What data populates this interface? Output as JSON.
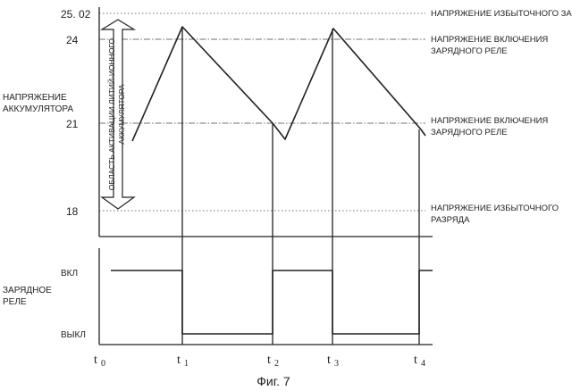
{
  "figure": {
    "caption": "Фиг. 7",
    "voltage_axis_label": [
      "НАПРЯЖЕНИЕ",
      "АККУМУЛЯТОРА"
    ],
    "relay_axis_label": [
      "ЗАРЯДНОЕ",
      "РЕЛЕ"
    ],
    "voltage_ticks": [
      {
        "value": 25.02,
        "label": "25. 02",
        "note": [
          "НАПРЯЖЕНИЕ ИЗБЫТОЧНОГО ЗАРЯДА"
        ],
        "style": "dotted"
      },
      {
        "value": 24,
        "label": "24",
        "note": [
          "НАПРЯЖЕНИЕ ВКЛЮЧЕНИЯ",
          "ЗАРЯДНОГО РЕЛЕ"
        ],
        "style": "dashdot"
      },
      {
        "value": 21,
        "label": "21",
        "note": [
          "НАПРЯЖЕНИЕ ВКЛЮЧЕНИЯ",
          "ЗАРЯДНОГО РЕЛЕ"
        ],
        "style": "dashdot"
      },
      {
        "value": 18,
        "label": "18",
        "note": [
          "НАПРЯЖЕНИЕ ИЗБЫТОЧНОГО",
          "РАЗРЯДА"
        ],
        "style": "dotted"
      }
    ],
    "activation_region": {
      "label": [
        "ОБЛАСТЬ АКТИВАЦИИ ЛИТИЙ-ИОННОГО",
        "АККУМУЛЯТОРА"
      ],
      "from": 18,
      "to": 25.02
    },
    "relay_levels": {
      "on": "ВКЛ",
      "off": "ВЫКЛ"
    },
    "time_marks": [
      {
        "base": "t",
        "sub": "0"
      },
      {
        "base": "t",
        "sub": "1"
      },
      {
        "base": "t",
        "sub": "2"
      },
      {
        "base": "t",
        "sub": "3"
      },
      {
        "base": "t",
        "sub": "4"
      }
    ],
    "voltage_curve": [
      {
        "t": "start",
        "v": 20.5
      },
      {
        "t": "t1",
        "v": 24.5
      },
      {
        "t": "t2",
        "v": 20.6
      },
      {
        "t": "t3",
        "v": 24.4
      },
      {
        "t": "end",
        "v": 20.6
      }
    ],
    "relay_states": [
      {
        "from": "start",
        "to": "t1",
        "state": "on"
      },
      {
        "from": "t1",
        "to": "t2",
        "state": "off"
      },
      {
        "from": "t2",
        "to": "t3",
        "state": "on"
      },
      {
        "from": "t3",
        "to": "t4",
        "state": "off"
      },
      {
        "from": "t4",
        "to": "end",
        "state": "on"
      }
    ]
  }
}
